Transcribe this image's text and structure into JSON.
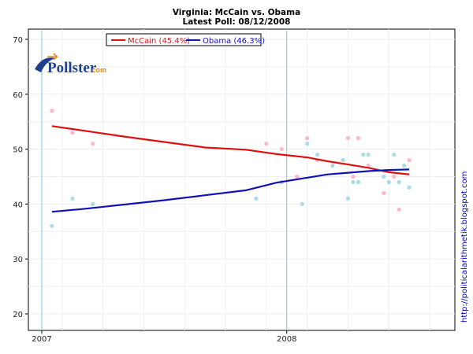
{
  "chart_data": {
    "type": "scatter",
    "title": "Virginia: McCain vs. Obama",
    "subtitle": "Latest Poll: 08/12/2008",
    "xlabel": "",
    "ylabel": "",
    "ylim": [
      18,
      71
    ],
    "xlim": [
      0,
      38
    ],
    "y_ticks": [
      20,
      30,
      40,
      50,
      60,
      70
    ],
    "x_ticks": [
      {
        "value": 0,
        "label": "2007"
      },
      {
        "value": 24,
        "label": "2008"
      }
    ],
    "vertical_reference_lines": [
      0,
      24
    ],
    "grid": true,
    "legend_position": "top-left",
    "series": [
      {
        "name": "McCain (45.4%)",
        "color": "#dd1111",
        "point_color": "#ffb6c8",
        "trend_x": [
          1,
          4,
          8,
          12,
          16,
          20,
          23,
          26,
          28,
          30,
          32,
          34,
          36
        ],
        "trend_y": [
          54.2,
          53.4,
          52.3,
          51.3,
          50.3,
          49.9,
          49.1,
          48.5,
          47.8,
          47.2,
          46.6,
          45.8,
          45.4
        ],
        "points_x": [
          1,
          3,
          5,
          22,
          23.5,
          25,
          26,
          27,
          29.5,
          30,
          30.5,
          31,
          32,
          33.5,
          34,
          34.5,
          35,
          35.5,
          36,
          36
        ],
        "points_y": [
          57,
          53,
          51,
          51,
          50,
          45,
          52,
          48,
          48,
          52,
          45,
          52,
          47,
          42,
          46,
          45,
          39,
          47,
          48,
          48
        ]
      },
      {
        "name": "Obama (46.3%)",
        "color": "#1111bb",
        "point_color": "#a8dce8",
        "trend_x": [
          1,
          4,
          8,
          12,
          16,
          20,
          23,
          26,
          28,
          30,
          32,
          34,
          36
        ],
        "trend_y": [
          38.6,
          39.1,
          39.9,
          40.7,
          41.6,
          42.5,
          43.9,
          44.8,
          45.4,
          45.7,
          46.0,
          46.2,
          46.3
        ],
        "points_x": [
          1,
          3,
          5,
          21,
          23.5,
          25.5,
          26,
          27,
          28.5,
          29.5,
          30,
          30.5,
          31,
          31.5,
          32,
          33.5,
          34,
          34.5,
          35,
          35.5,
          36
        ],
        "points_y": [
          36,
          41,
          40,
          41,
          44,
          40,
          51,
          49,
          47,
          48,
          41,
          44,
          44,
          49,
          49,
          45,
          44,
          49,
          44,
          47,
          43
        ]
      }
    ]
  },
  "logo": {
    "name": "Pollster",
    "suffix": ".com"
  },
  "side_label": "http://politicalarithmetik.blogspot.com"
}
